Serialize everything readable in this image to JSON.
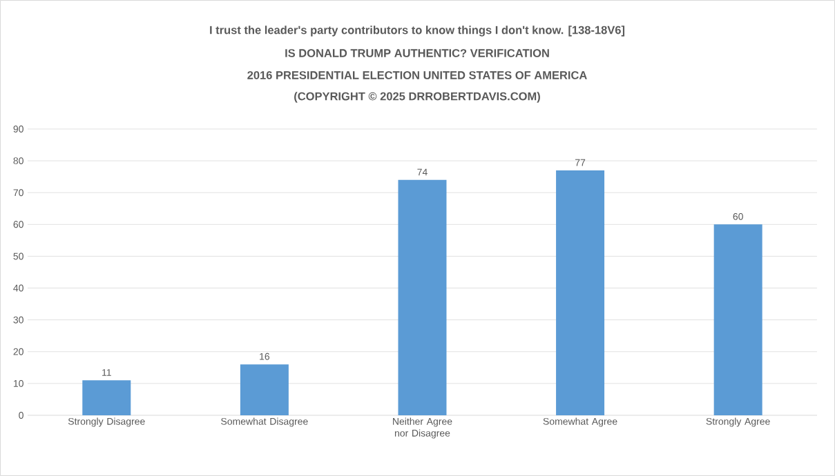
{
  "chart_data": {
    "type": "bar",
    "title": "I trust the leader's party contributors to know things I don't know. [138-18V6]",
    "subtitle": "IS DONALD TRUMP AUTHENTIC? VERIFICATION",
    "annotations": [
      "2016 PRESIDENTIAL ELECTION UNITED STATES OF AMERICA",
      "(COPYRIGHT © 2025 DRROBERTDAVIS.COM)"
    ],
    "categories": [
      "Strongly Disagree",
      "Somewhat Disagree",
      "Neither Agree nor Disagree",
      "Somewhat Agree",
      "Strongly Agree"
    ],
    "values": [
      11,
      16,
      74,
      77,
      60
    ],
    "color": "#5b9bd5",
    "ylim": [
      0,
      90
    ],
    "yticks": [
      0,
      10,
      20,
      30,
      40,
      50,
      60,
      70,
      80,
      90
    ],
    "grid": "y",
    "data_labels": true
  }
}
